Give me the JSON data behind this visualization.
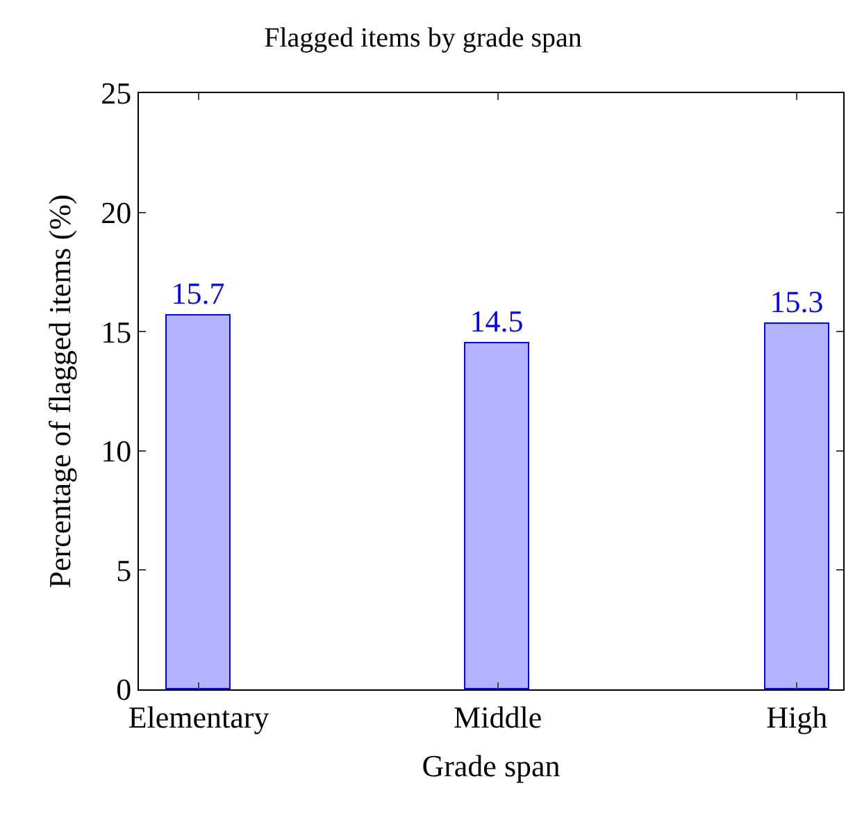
{
  "chart_data": {
    "type": "bar",
    "title": "Flagged items by grade span",
    "xlabel": "Grade span",
    "ylabel": "Percentage of flagged items (%)",
    "categories": [
      "Elementary",
      "Middle",
      "High"
    ],
    "series": [
      {
        "color": "#0000ff",
        "values": [
          15.7,
          14.5,
          15.3
        ]
      }
    ],
    "ylim": [
      0,
      25
    ],
    "yticks": [
      0,
      5,
      10,
      15,
      20,
      25
    ],
    "data_labels": true
  }
}
